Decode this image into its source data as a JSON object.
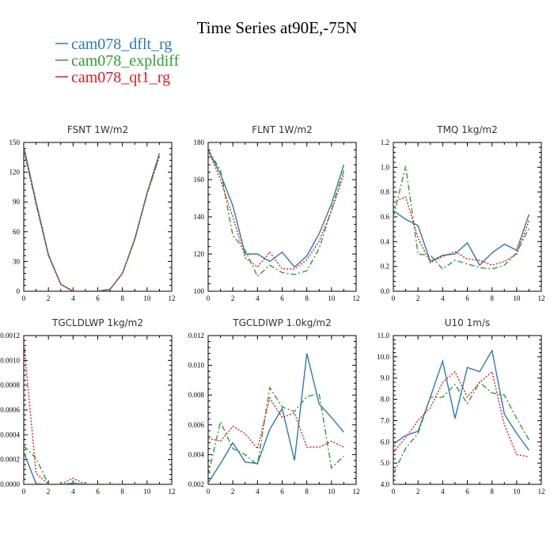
{
  "title": "Time Series at90E,-75N",
  "legend": [
    {
      "label": "cam078_dflt_rg",
      "color": "#2a7ab8",
      "dash": "solid"
    },
    {
      "label": "cam078_expldiff",
      "color": "#2ca02c",
      "dash": "dashdot"
    },
    {
      "label": "cam078_qt1_rg",
      "color": "#e41a1c",
      "dash": "dotted"
    }
  ],
  "chart_data": [
    {
      "type": "line",
      "title": "FSNT  1W/m2",
      "x": [
        0,
        1,
        2,
        3,
        4,
        5,
        6,
        7,
        8,
        9,
        10,
        11
      ],
      "xlim": [
        0,
        12
      ],
      "xticks": [
        "0",
        "2",
        "4",
        "6",
        "8",
        "10",
        "12"
      ],
      "ylim": [
        0,
        150
      ],
      "yticks": [
        "0",
        "30",
        "60",
        "90",
        "120",
        "150"
      ],
      "series": [
        {
          "name": "cam078_dflt_rg",
          "values": [
            146,
            90,
            37,
            7,
            0,
            0,
            0,
            2,
            18,
            53,
            99,
            139
          ]
        },
        {
          "name": "cam078_expldiff",
          "values": [
            143,
            88,
            36,
            7,
            0,
            0,
            0,
            2,
            18,
            52,
            98,
            136
          ]
        },
        {
          "name": "cam078_qt1_rg",
          "values": [
            143,
            88,
            36,
            7,
            0,
            0,
            0,
            2,
            18,
            52,
            98,
            136
          ]
        }
      ]
    },
    {
      "type": "line",
      "title": "FLNT  1W/m2",
      "x": [
        0,
        1,
        2,
        3,
        4,
        5,
        6,
        7,
        8,
        9,
        10,
        11
      ],
      "xlim": [
        0,
        12
      ],
      "xticks": [
        "0",
        "2",
        "4",
        "6",
        "8",
        "10",
        "12"
      ],
      "ylim": [
        100,
        180
      ],
      "yticks": [
        "100",
        "120",
        "140",
        "160",
        "180"
      ],
      "series": [
        {
          "name": "cam078_dflt_rg",
          "values": [
            176,
            163,
            146,
            120,
            120,
            116,
            121,
            113,
            119,
            131,
            147,
            168
          ]
        },
        {
          "name": "cam078_expldiff",
          "values": [
            176,
            165,
            130,
            122,
            108,
            114,
            110,
            109,
            111,
            123,
            144,
            165
          ]
        },
        {
          "name": "cam078_qt1_rg",
          "values": [
            176,
            160,
            140,
            118,
            113,
            121,
            112,
            112,
            117,
            127,
            143,
            163
          ]
        }
      ]
    },
    {
      "type": "line",
      "title": "TMQ  1kg/m2",
      "x": [
        0,
        1,
        2,
        3,
        4,
        5,
        6,
        7,
        8,
        9,
        10,
        11
      ],
      "xlim": [
        0,
        12
      ],
      "xticks": [
        "0",
        "2",
        "4",
        "6",
        "8",
        "10",
        "12"
      ],
      "ylim": [
        0,
        1.2
      ],
      "yticks": [
        "0.0",
        "0.2",
        "0.4",
        "0.6",
        "0.8",
        "1.0",
        "1.2"
      ],
      "series": [
        {
          "name": "cam078_dflt_rg",
          "values": [
            0.65,
            0.58,
            0.53,
            0.24,
            0.29,
            0.3,
            0.39,
            0.21,
            0.31,
            0.38,
            0.33,
            0.62
          ]
        },
        {
          "name": "cam078_expldiff",
          "values": [
            0.6,
            1.01,
            0.3,
            0.29,
            0.18,
            0.25,
            0.22,
            0.19,
            0.18,
            0.21,
            0.31,
            0.51
          ]
        },
        {
          "name": "cam078_qt1_rg",
          "values": [
            0.72,
            0.76,
            0.43,
            0.23,
            0.28,
            0.32,
            0.26,
            0.25,
            0.21,
            0.24,
            0.3,
            0.57
          ]
        }
      ]
    },
    {
      "type": "line",
      "title": "TGCLDLWP  1kg/m2",
      "x": [
        0,
        1,
        2,
        3,
        4,
        5,
        6,
        7,
        8,
        9,
        10,
        11
      ],
      "xlim": [
        0,
        12
      ],
      "xticks": [
        "0",
        "2",
        "4",
        "6",
        "8",
        "10",
        "12"
      ],
      "ylim": [
        0,
        0.0012
      ],
      "yticks": [
        "0.0000",
        "0.0002",
        "0.0004",
        "0.0006",
        "0.0008",
        "0.0010",
        "0.0012"
      ],
      "series": [
        {
          "name": "cam078_dflt_rg",
          "values": [
            0.00026,
            5e-06,
            0,
            0,
            1e-05,
            0,
            0,
            0,
            0,
            0,
            0,
            0
          ]
        },
        {
          "name": "cam078_expldiff",
          "values": [
            0.00031,
            0.00021,
            0,
            0,
            0,
            0,
            0,
            0,
            0,
            0,
            0,
            0
          ]
        },
        {
          "name": "cam078_qt1_rg",
          "values": [
            0.00115,
            9e-05,
            0,
            0,
            5e-05,
            0,
            0,
            0,
            0,
            0,
            0,
            0
          ]
        }
      ]
    },
    {
      "type": "line",
      "title": "TGCLDIWP  1.0kg/m2",
      "x": [
        0,
        1,
        2,
        3,
        4,
        5,
        6,
        7,
        8,
        9,
        10,
        11
      ],
      "xlim": [
        0,
        12
      ],
      "xticks": [
        "0",
        "2",
        "4",
        "6",
        "8",
        "10",
        "12"
      ],
      "ylim": [
        0.002,
        0.012
      ],
      "yticks": [
        "0.002",
        "0.004",
        "0.006",
        "0.008",
        "0.010",
        "0.012"
      ],
      "series": [
        {
          "name": "cam078_dflt_rg",
          "values": [
            0.0021,
            0.0034,
            0.0048,
            0.0035,
            0.0034,
            0.0057,
            0.0071,
            0.0036,
            0.0108,
            0.0074,
            0.0065,
            0.0055
          ]
        },
        {
          "name": "cam078_expldiff",
          "values": [
            0.0026,
            0.0062,
            0.0044,
            0.004,
            0.0033,
            0.0085,
            0.0072,
            0.0069,
            0.0079,
            0.0081,
            0.0031,
            0.0039
          ]
        },
        {
          "name": "cam078_qt1_rg",
          "values": [
            0.0051,
            0.0049,
            0.0059,
            0.0054,
            0.0044,
            0.0078,
            0.0065,
            0.0068,
            0.0045,
            0.0045,
            0.0049,
            0.0045
          ]
        }
      ]
    },
    {
      "type": "line",
      "title": "U10  1m/s",
      "x": [
        0,
        1,
        2,
        3,
        4,
        5,
        6,
        7,
        8,
        9,
        10,
        11
      ],
      "xlim": [
        0,
        12
      ],
      "xticks": [
        "0",
        "2",
        "4",
        "6",
        "8",
        "10",
        "12"
      ],
      "ylim": [
        4,
        11
      ],
      "yticks": [
        "4.0",
        "5.0",
        "6.0",
        "7.0",
        "8.0",
        "9.0",
        "10.0",
        "11.0"
      ],
      "series": [
        {
          "name": "cam078_dflt_rg",
          "values": [
            5.9,
            6.3,
            6.5,
            8.1,
            9.8,
            7.1,
            9.5,
            9.3,
            10.3,
            7.3,
            6.4,
            5.6
          ]
        },
        {
          "name": "cam078_expldiff",
          "values": [
            4.5,
            5.7,
            6.4,
            8.1,
            8.1,
            8.7,
            7.8,
            8.8,
            8.3,
            8.2,
            7.1,
            6.1
          ]
        },
        {
          "name": "cam078_qt1_rg",
          "values": [
            5.5,
            6.2,
            7.0,
            7.6,
            8.8,
            9.3,
            8.1,
            8.8,
            9.3,
            6.8,
            5.4,
            5.3
          ]
        }
      ]
    }
  ]
}
